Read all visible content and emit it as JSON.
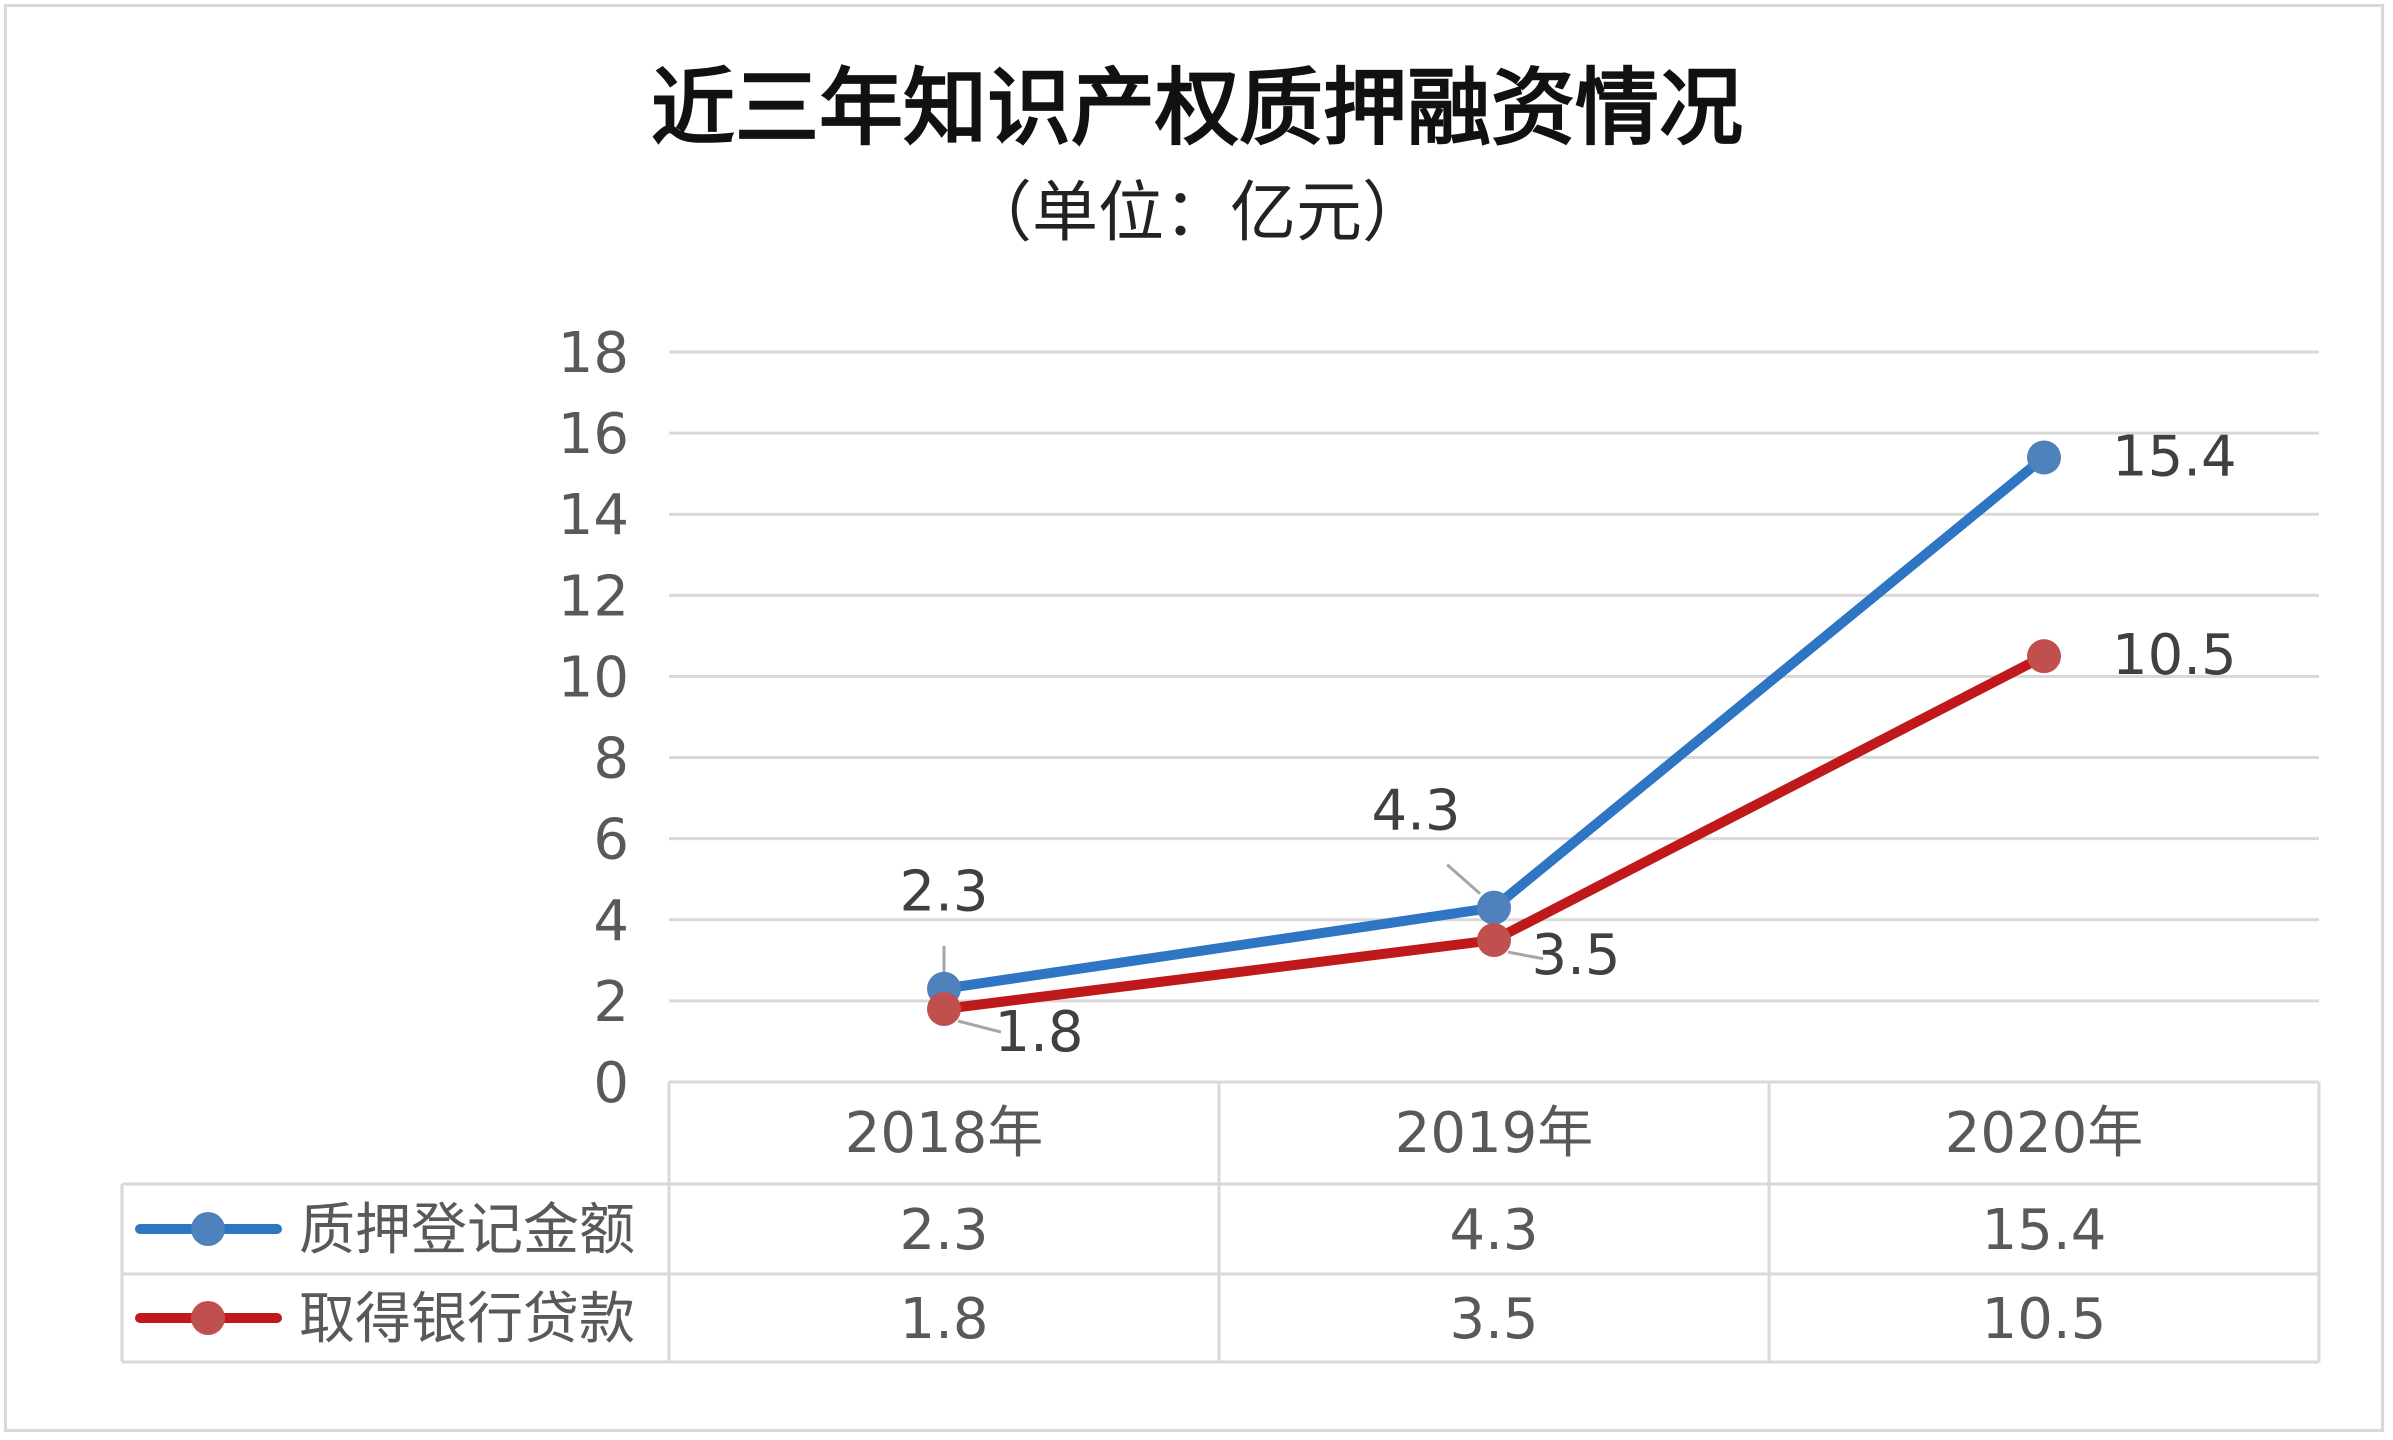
{
  "chart_data": {
    "type": "line",
    "title": "近三年知识产权质押融资情况",
    "subtitle": "（单位：亿元）",
    "categories": [
      "2018年",
      "2019年",
      "2020年"
    ],
    "series": [
      {
        "name": "质押登记金额",
        "values": [
          2.3,
          4.3,
          15.4
        ],
        "color": "#2e75c3",
        "marker": "#4f81bd"
      },
      {
        "name": "取得银行贷款",
        "values": [
          1.8,
          3.5,
          10.5
        ],
        "color": "#c0191b",
        "marker": "#c0504d"
      }
    ],
    "ylim": [
      0,
      18
    ],
    "yticks": [
      0,
      2,
      4,
      6,
      8,
      10,
      12,
      14,
      16,
      18
    ],
    "grid": true,
    "legend": "data-table"
  }
}
